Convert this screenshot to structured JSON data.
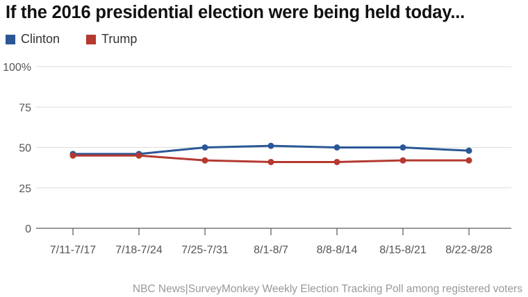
{
  "chart_data": {
    "type": "line",
    "title": "If the 2016 presidential election were being held today...",
    "categories": [
      "7/11-7/17",
      "7/18-7/24",
      "7/25-7/31",
      "8/1-8/7",
      "8/8-8/14",
      "8/15-8/21",
      "8/22-8/28"
    ],
    "series": [
      {
        "name": "Clinton",
        "color": "#2b5797",
        "values": [
          46,
          46,
          50,
          51,
          50,
          50,
          48
        ]
      },
      {
        "name": "Trump",
        "color": "#b5392f",
        "values": [
          45,
          45,
          42,
          41,
          41,
          42,
          42
        ]
      }
    ],
    "ylim": [
      0,
      100
    ],
    "yticks": [
      "0",
      "25",
      "50",
      "75",
      "100%"
    ],
    "ytick_values": [
      0,
      25,
      50,
      75,
      100
    ],
    "xlabel": "",
    "ylabel": "",
    "grid": true,
    "legend": "top-left",
    "source": "NBC News|SurveyMonkey Weekly Election Tracking Poll among registered voters"
  }
}
